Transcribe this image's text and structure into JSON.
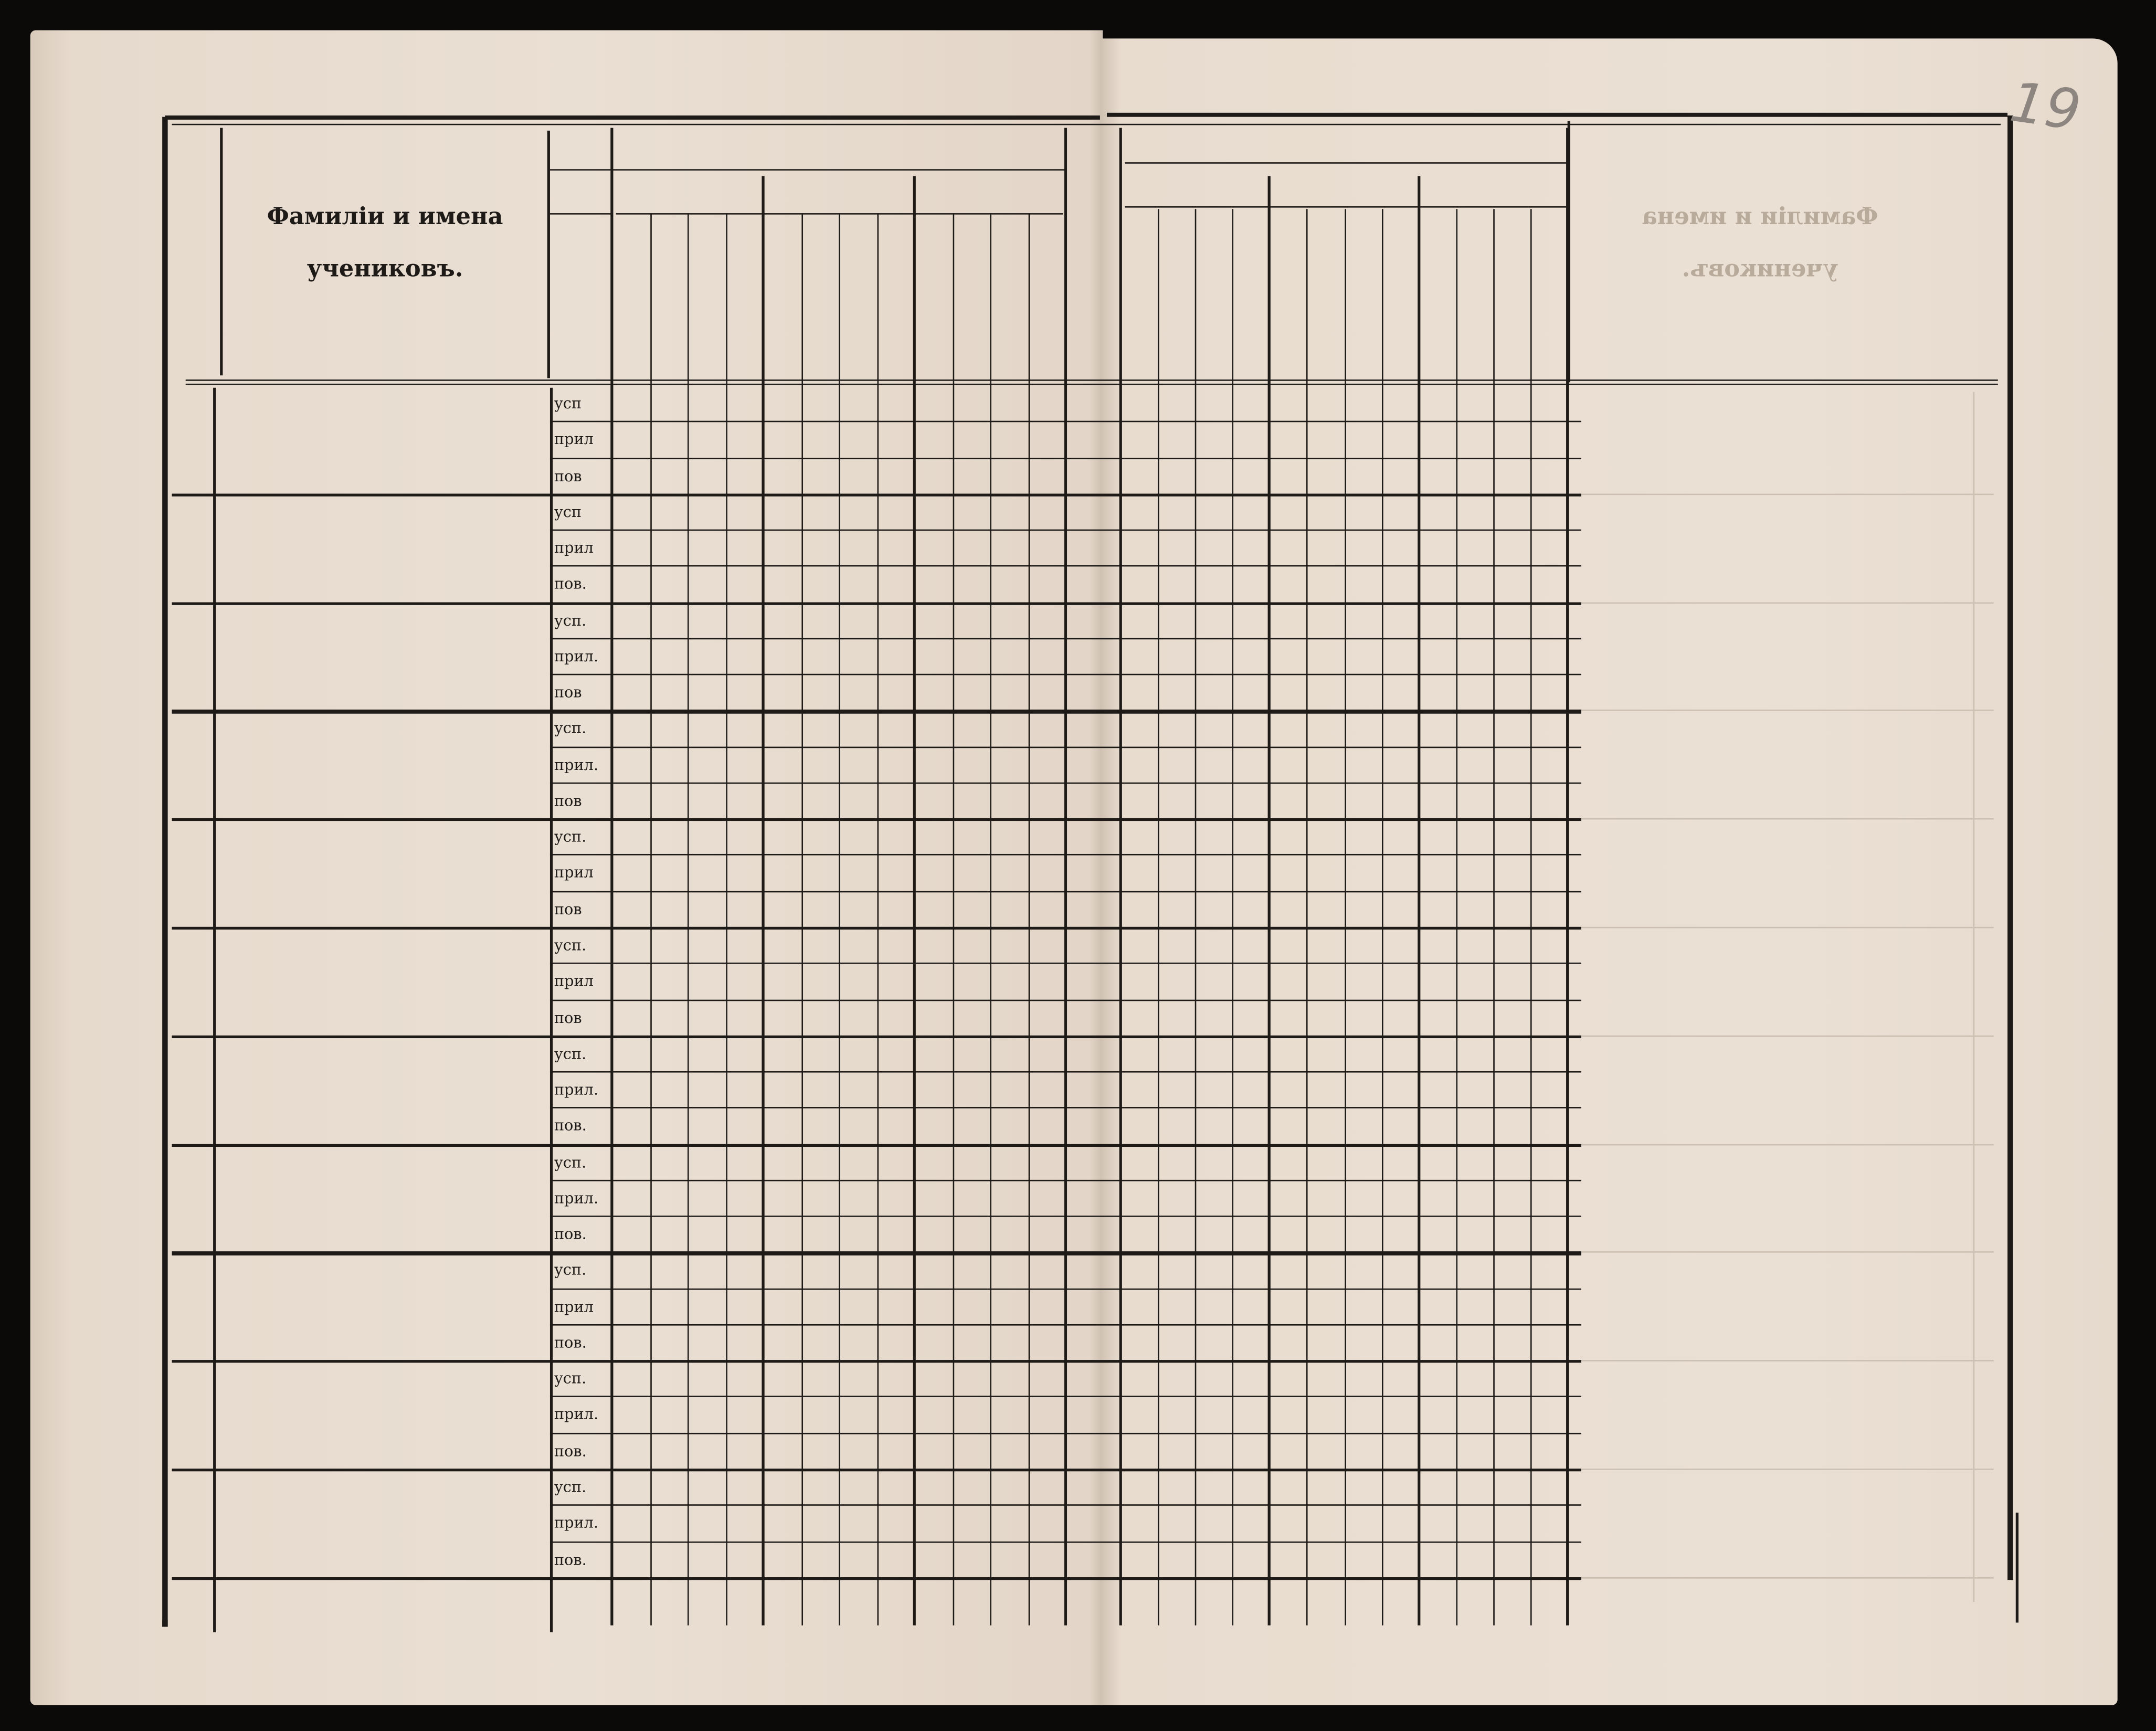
{
  "page_number": "19",
  "header": {
    "title_line1": "Фамиліи и имена",
    "title_line2": "учениковъ."
  },
  "show_through": {
    "title_line1": "Фамиліи и имена",
    "title_line2": "учениковъ."
  },
  "rows": [
    {
      "labels": [
        "усп",
        "прил",
        "пов"
      ]
    },
    {
      "labels": [
        "усп",
        "прил",
        "пов."
      ]
    },
    {
      "labels": [
        "усп.",
        "прил.",
        "пов"
      ]
    },
    {
      "labels": [
        "усп.",
        "прил.",
        "пов"
      ]
    },
    {
      "labels": [
        "усп.",
        "прил",
        "пов"
      ]
    },
    {
      "labels": [
        "усп.",
        "прил",
        "пов"
      ]
    },
    {
      "labels": [
        "усп.",
        "прил.",
        "пов."
      ]
    },
    {
      "labels": [
        "усп.",
        "прил.",
        "пов."
      ]
    },
    {
      "labels": [
        "усп.",
        "прил",
        "пов."
      ]
    },
    {
      "labels": [
        "усп.",
        "прил.",
        "пов."
      ]
    },
    {
      "labels": [
        "усп.",
        "прил.",
        "пов."
      ]
    }
  ],
  "colors": {
    "paper": "#e9ddd0",
    "ink": "#1e1a17",
    "background": "#0b0a09"
  }
}
